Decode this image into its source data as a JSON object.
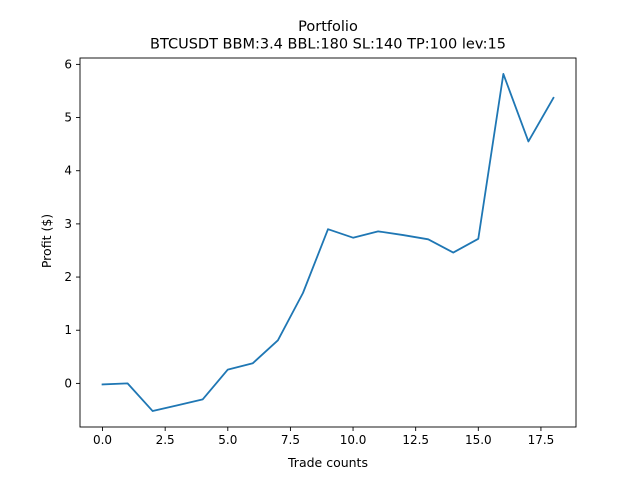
{
  "chart_data": {
    "type": "line",
    "title": "Portfolio",
    "subtitle": "BTCUSDT BBM:3.4 BBL:180 SL:140 TP:100 lev:15",
    "xlabel": "Trade counts",
    "ylabel": "Profit ($)",
    "xlim": [
      -0.9,
      18.9
    ],
    "ylim": [
      -0.82,
      6.12
    ],
    "xticks": [
      0.0,
      2.5,
      5.0,
      7.5,
      10.0,
      12.5,
      15.0,
      17.5
    ],
    "xtick_labels": [
      "0.0",
      "2.5",
      "5.0",
      "7.5",
      "10.0",
      "12.5",
      "15.0",
      "17.5"
    ],
    "yticks": [
      0,
      1,
      2,
      3,
      4,
      5,
      6
    ],
    "ytick_labels": [
      "0",
      "1",
      "2",
      "3",
      "4",
      "5",
      "6"
    ],
    "grid": false,
    "series": [
      {
        "color": "#1f77b4",
        "x": [
          0,
          1,
          2,
          3,
          4,
          5,
          6,
          7,
          8,
          9,
          10,
          11,
          12,
          13,
          14,
          15,
          16,
          17,
          18
        ],
        "values": [
          -0.02,
          0.0,
          -0.52,
          -0.41,
          -0.3,
          0.26,
          0.38,
          0.81,
          1.7,
          2.9,
          2.74,
          2.86,
          2.79,
          2.71,
          2.46,
          2.72,
          5.82,
          4.55,
          5.37
        ]
      }
    ]
  }
}
